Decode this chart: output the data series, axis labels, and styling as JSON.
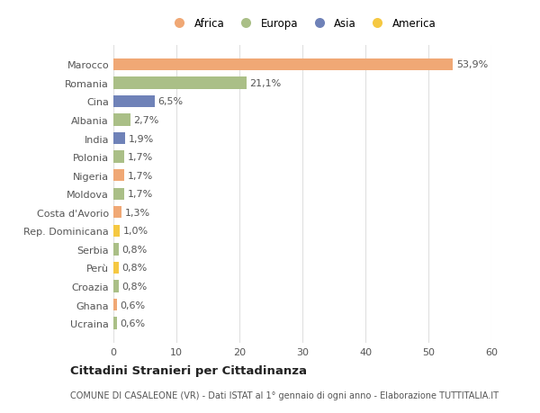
{
  "categories": [
    "Marocco",
    "Romania",
    "Cina",
    "Albania",
    "India",
    "Polonia",
    "Nigeria",
    "Moldova",
    "Costa d'Avorio",
    "Rep. Dominicana",
    "Serbia",
    "Perù",
    "Croazia",
    "Ghana",
    "Ucraina"
  ],
  "values": [
    53.9,
    21.1,
    6.5,
    2.7,
    1.9,
    1.7,
    1.7,
    1.7,
    1.3,
    1.0,
    0.8,
    0.8,
    0.8,
    0.6,
    0.6
  ],
  "labels": [
    "53,9%",
    "21,1%",
    "6,5%",
    "2,7%",
    "1,9%",
    "1,7%",
    "1,7%",
    "1,7%",
    "1,3%",
    "1,0%",
    "0,8%",
    "0,8%",
    "0,8%",
    "0,6%",
    "0,6%"
  ],
  "colors": [
    "#F0A875",
    "#AABF87",
    "#6F82B8",
    "#AABF87",
    "#6F82B8",
    "#AABF87",
    "#F0A875",
    "#AABF87",
    "#F0A875",
    "#F5C842",
    "#AABF87",
    "#F5C842",
    "#AABF87",
    "#F0A875",
    "#AABF87"
  ],
  "continent": [
    "Africa",
    "Europa",
    "Asia",
    "Europa",
    "Asia",
    "Europa",
    "Africa",
    "Europa",
    "Africa",
    "America",
    "Europa",
    "America",
    "Europa",
    "Africa",
    "Europa"
  ],
  "legend_labels": [
    "Africa",
    "Europa",
    "Asia",
    "America"
  ],
  "legend_colors": [
    "#F0A875",
    "#AABF87",
    "#6F82B8",
    "#F5C842"
  ],
  "title": "Cittadini Stranieri per Cittadinanza",
  "subtitle": "COMUNE DI CASALEONE (VR) - Dati ISTAT al 1° gennaio di ogni anno - Elaborazione TUTTITALIA.IT",
  "xlim": [
    0,
    60
  ],
  "xticks": [
    0,
    10,
    20,
    30,
    40,
    50,
    60
  ],
  "plot_bg": "#ffffff",
  "fig_bg": "#ffffff",
  "grid_color": "#e0e0e0",
  "bar_label_color": "#555555",
  "ytick_color": "#555555",
  "label_fontsize": 8.0,
  "tick_fontsize": 8.0,
  "legend_fontsize": 8.5
}
